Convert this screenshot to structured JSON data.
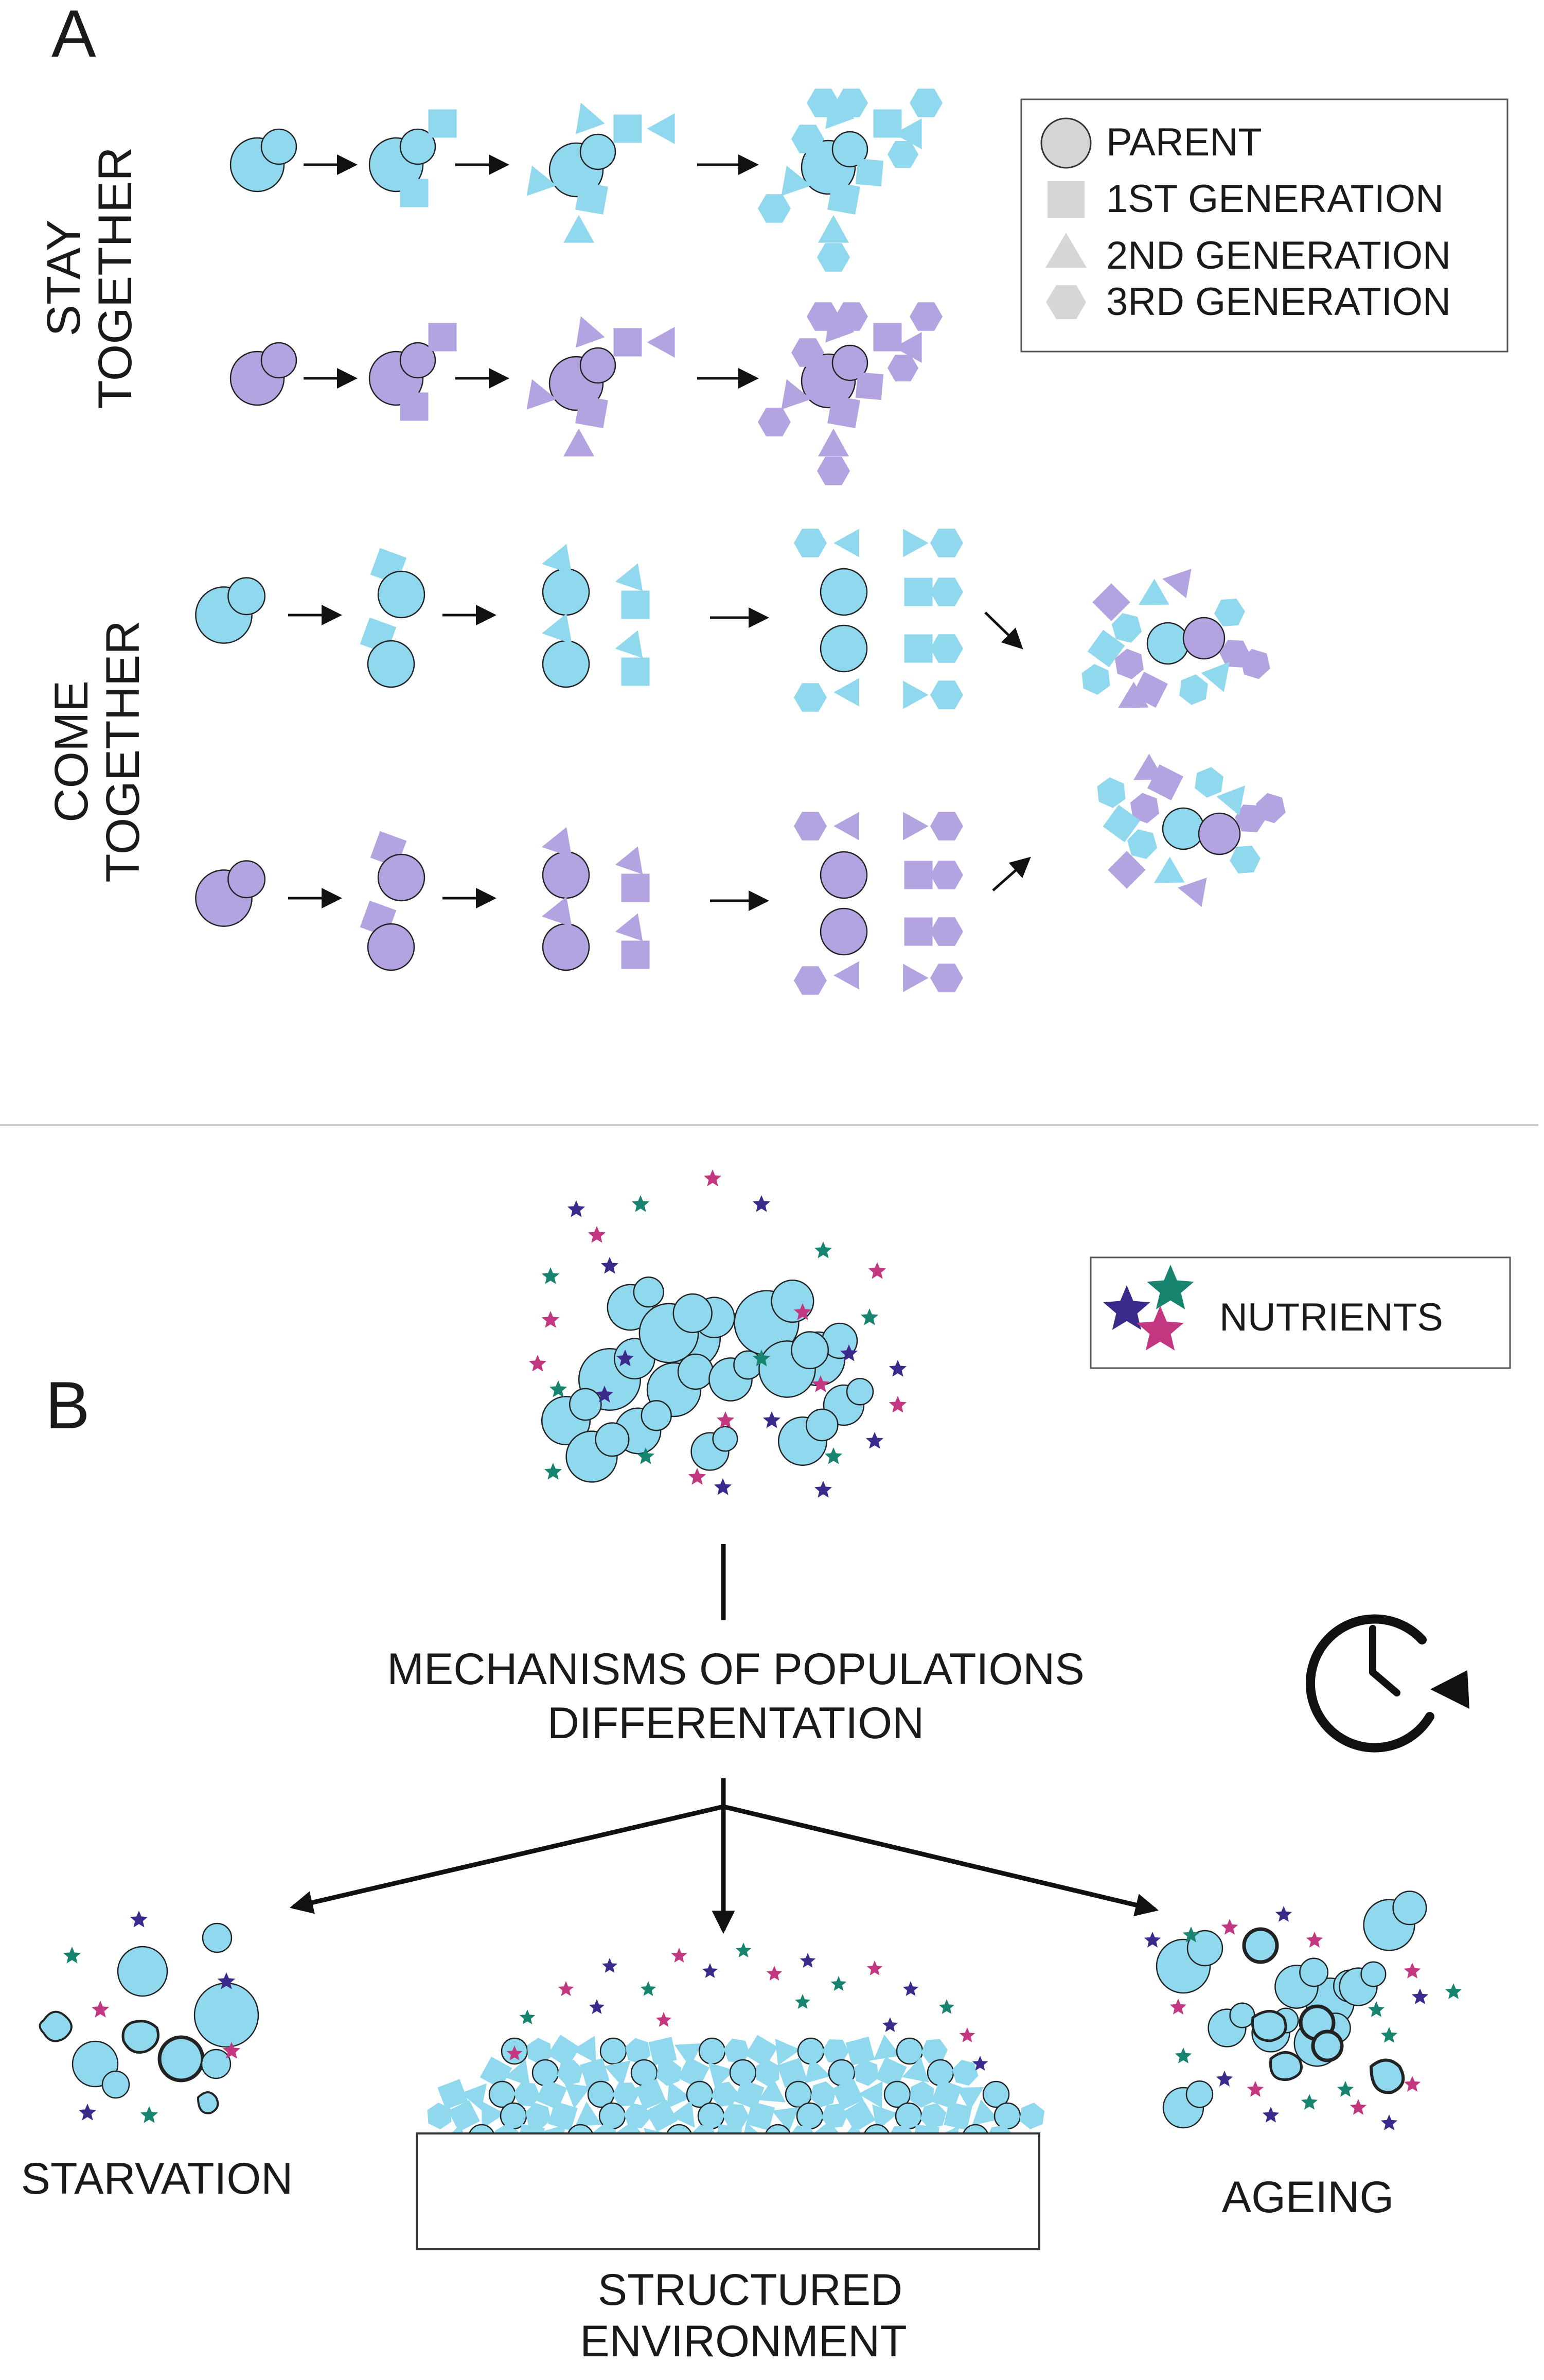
{
  "panel_a": {
    "label": "A",
    "group_stay": [
      "STAY",
      "TOGETHER"
    ],
    "group_come": [
      "COME",
      "TOGETHER"
    ],
    "legend": {
      "parent": "PARENT",
      "gen1": "1ST  GENERATION",
      "gen2": "2ND GENERATION",
      "gen3": "3RD GENERATION"
    }
  },
  "panel_b": {
    "label": "B",
    "nutrients_label": "NUTRIENTS",
    "mechanisms_line1": "MECHANISMS OF POPULATIONS",
    "mechanisms_line2": "DIFFERENTATION",
    "outcomes": {
      "starvation": "STARVATION",
      "structured_line1": "STRUCTURED",
      "structured_line2": "ENVIRONMENT",
      "ageing": "AGEING"
    }
  },
  "colors": {
    "strain_blue": "#8fd8ee",
    "strain_purple": "#b3a3e0",
    "legend_grey": "#d6d6d6",
    "star_navy": "#3b2a8c",
    "star_teal": "#17846f",
    "star_magenta": "#c2377f"
  }
}
